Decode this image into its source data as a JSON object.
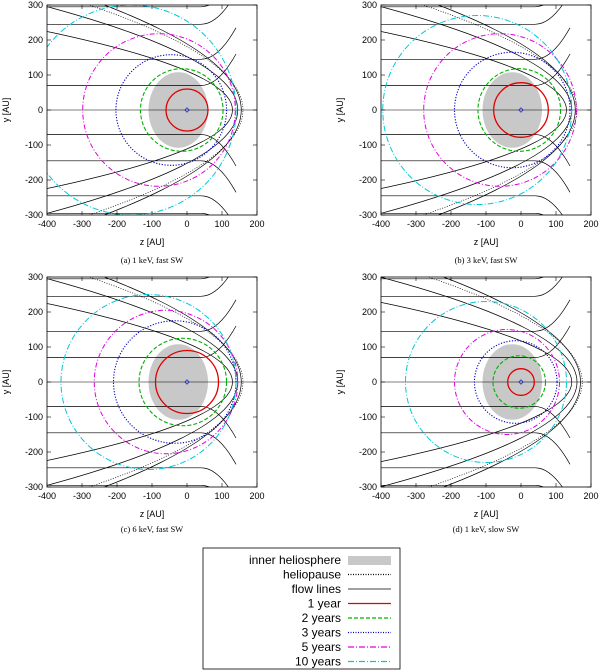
{
  "chart_data": [
    {
      "type": "line",
      "caption": "(a)  1 keV, fast SW",
      "xlabel": "z [AU]",
      "ylabel": "y [AU]",
      "xlim": [
        -400,
        200
      ],
      "ylim": [
        -300,
        300
      ],
      "xticks": [
        -400,
        -300,
        -200,
        -100,
        0,
        100,
        200
      ],
      "yticks": [
        -300,
        -200,
        -100,
        0,
        100,
        200,
        300
      ],
      "inner_heliosphere": {
        "center_z": -25,
        "half_width_z": 85,
        "half_height_y": 108
      },
      "heliopause_nose_z": 160,
      "series": [
        {
          "name": "1 year",
          "center_z": 0,
          "radius": 60
        },
        {
          "name": "2 years",
          "center_z": -15,
          "radius": 118
        },
        {
          "name": "3 years",
          "center_z": -45,
          "radius": 158
        },
        {
          "name": "5 years",
          "center_z": -80,
          "radius": 218
        },
        {
          "name": "10 years",
          "center_z": -160,
          "radius": 300
        }
      ]
    },
    {
      "type": "line",
      "caption": "(b)  3 keV, fast SW",
      "xlabel": "z [AU]",
      "ylabel": "y [AU]",
      "xlim": [
        -400,
        200
      ],
      "ylim": [
        -300,
        300
      ],
      "xticks": [
        -400,
        -300,
        -200,
        -100,
        0,
        100,
        200
      ],
      "yticks": [
        -300,
        -200,
        -100,
        0,
        100,
        200,
        300
      ],
      "inner_heliosphere": {
        "center_z": -25,
        "half_width_z": 85,
        "half_height_y": 108
      },
      "heliopause_nose_z": 160,
      "series": [
        {
          "name": "1 year",
          "center_z": 0,
          "radius": 78
        },
        {
          "name": "2 years",
          "center_z": -5,
          "radius": 118
        },
        {
          "name": "3 years",
          "center_z": -25,
          "radius": 165
        },
        {
          "name": "5 years",
          "center_z": -60,
          "radius": 218
        },
        {
          "name": "10 years",
          "center_z": -125,
          "radius": 270
        }
      ]
    },
    {
      "type": "line",
      "caption": "(c)  6 keV, fast SW",
      "xlabel": "z [AU]",
      "ylabel": "y [AU]",
      "xlim": [
        -400,
        200
      ],
      "ylim": [
        -300,
        300
      ],
      "xticks": [
        -400,
        -300,
        -200,
        -100,
        0,
        100,
        200
      ],
      "yticks": [
        -300,
        -200,
        -100,
        0,
        100,
        200,
        300
      ],
      "inner_heliosphere": {
        "center_z": -25,
        "half_width_z": 85,
        "half_height_y": 108
      },
      "heliopause_nose_z": 160,
      "series": [
        {
          "name": "1 year",
          "center_z": 0,
          "radius": 90
        },
        {
          "name": "2 years",
          "center_z": -12,
          "radius": 125
        },
        {
          "name": "3 years",
          "center_z": -35,
          "radius": 175
        },
        {
          "name": "5 years",
          "center_z": -60,
          "radius": 205
        },
        {
          "name": "10 years",
          "center_z": -110,
          "radius": 250
        }
      ]
    },
    {
      "type": "line",
      "caption": "(d)  1 keV, slow SW",
      "xlabel": "z [AU]",
      "ylabel": "y [AU]",
      "xlim": [
        -400,
        200
      ],
      "ylim": [
        -300,
        300
      ],
      "xticks": [
        -400,
        -300,
        -200,
        -100,
        0,
        100,
        200
      ],
      "yticks": [
        -300,
        -200,
        -100,
        0,
        100,
        200,
        300
      ],
      "inner_heliosphere": {
        "center_z": -25,
        "half_width_z": 85,
        "half_height_y": 108
      },
      "heliopause_nose_z": 175,
      "series": [
        {
          "name": "1 year",
          "center_z": 0,
          "radius": 38
        },
        {
          "name": "2 years",
          "center_z": -5,
          "radius": 75
        },
        {
          "name": "3 years",
          "center_z": -15,
          "radius": 118
        },
        {
          "name": "5 years",
          "center_z": -40,
          "radius": 150
        },
        {
          "name": "10 years",
          "center_z": -100,
          "radius": 230
        }
      ]
    }
  ],
  "legend": {
    "items": [
      {
        "label": "inner heliosphere",
        "style": "fill",
        "color": "#c8c8c8"
      },
      {
        "label": "heliopause",
        "style": "dotted",
        "color": "#000000"
      },
      {
        "label": "flow lines",
        "style": "solid-thin",
        "color": "#000000"
      },
      {
        "label": "1 year",
        "style": "solid",
        "color": "#e00000"
      },
      {
        "label": "2 years",
        "style": "dashed",
        "color": "#00b000"
      },
      {
        "label": "3 years",
        "style": "dotted",
        "color": "#0000c0"
      },
      {
        "label": "5 years",
        "style": "dash-dot",
        "color": "#e000e0"
      },
      {
        "label": "10 years",
        "style": "dash-dot",
        "color": "#00c8d8"
      }
    ]
  },
  "colors": {
    "one_year": "#e00000",
    "two_years": "#00b000",
    "three_years": "#0000c0",
    "five_years": "#e000e0",
    "ten_years": "#00c8d8",
    "heliosphere": "#c8c8c8",
    "lines": "#000000",
    "center_marker": "#2020e0"
  }
}
